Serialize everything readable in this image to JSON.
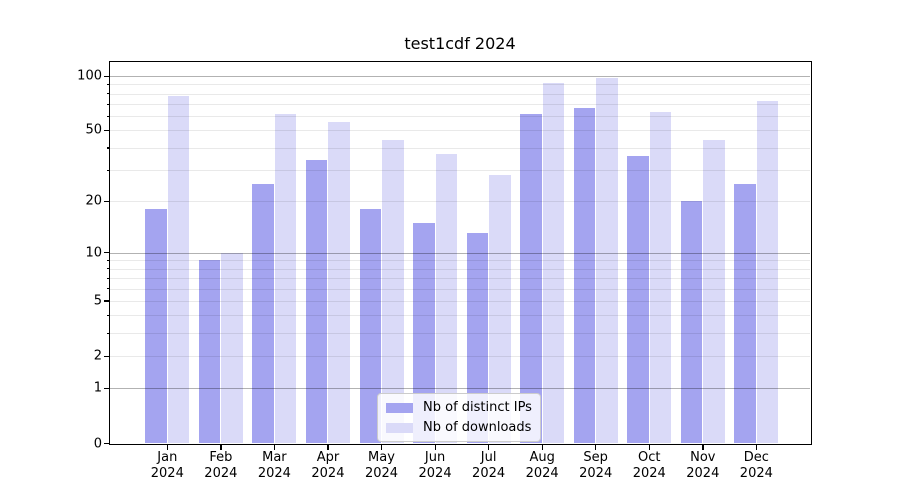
{
  "chart_data": {
    "type": "bar",
    "title": "test1cdf 2024",
    "categories": [
      "Jan",
      "Feb",
      "Mar",
      "Apr",
      "May",
      "Jun",
      "Jul",
      "Aug",
      "Sep",
      "Oct",
      "Nov",
      "Dec"
    ],
    "category_year": "2024",
    "series": [
      {
        "name": "Nb of distinct IPs",
        "color": "#a4a4f0",
        "values": [
          18,
          9,
          25,
          34,
          18,
          15,
          13,
          62,
          67,
          36,
          20,
          25
        ]
      },
      {
        "name": "Nb of downloads",
        "color": "#dadaf8",
        "values": [
          78,
          10,
          62,
          56,
          44,
          37,
          28,
          92,
          98,
          63,
          44,
          73
        ]
      }
    ],
    "yscale": "symlog (position ~ ln(1+v))",
    "ylim": [
      0,
      120
    ],
    "yticks": [
      0,
      1,
      2,
      5,
      10,
      20,
      50,
      100
    ],
    "major_gridlines": [
      1,
      10,
      100
    ],
    "minor_gridlines": [
      2,
      3,
      4,
      5,
      6,
      7,
      8,
      9,
      20,
      30,
      40,
      50,
      60,
      70,
      80,
      90
    ],
    "grid": "horizontal only",
    "legend_position": "inside lower-center",
    "colors": {
      "axis": "#000000",
      "major_grid": "#b3b3b3",
      "minor_grid": "#e9e9e9",
      "legend_border": "#cccccc",
      "background": "#ffffff"
    }
  }
}
